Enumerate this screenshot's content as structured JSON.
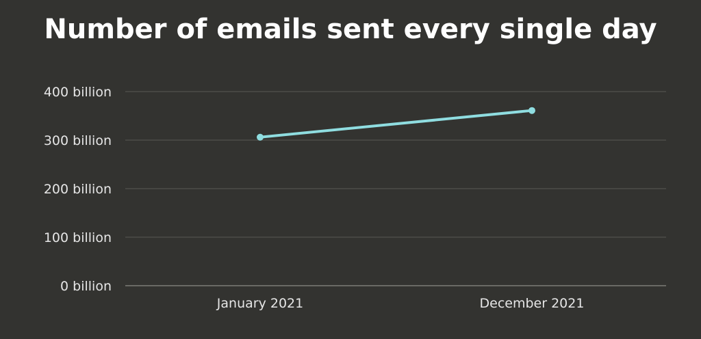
{
  "chart_data": {
    "type": "line",
    "title": "Number of emails sent every single day",
    "categories": [
      "January 2021",
      "December 2021"
    ],
    "series": [
      {
        "values": [
          306,
          361
        ]
      }
    ],
    "ylim": [
      0,
      400
    ],
    "y_ticks": [
      {
        "value": 0,
        "label": "0 billion"
      },
      {
        "value": 100,
        "label": "100 billion"
      },
      {
        "value": 200,
        "label": "200 billion"
      },
      {
        "value": 300,
        "label": "300 billion"
      },
      {
        "value": 400,
        "label": "400 billion"
      }
    ],
    "xlabel": "",
    "ylabel": "",
    "grid": true,
    "colors": {
      "background": "#333330",
      "line": "#8fdde0",
      "grid": "#5a5a55",
      "axis": "#8a8a85",
      "text": "#e6e6e6",
      "title": "#ffffff"
    }
  }
}
